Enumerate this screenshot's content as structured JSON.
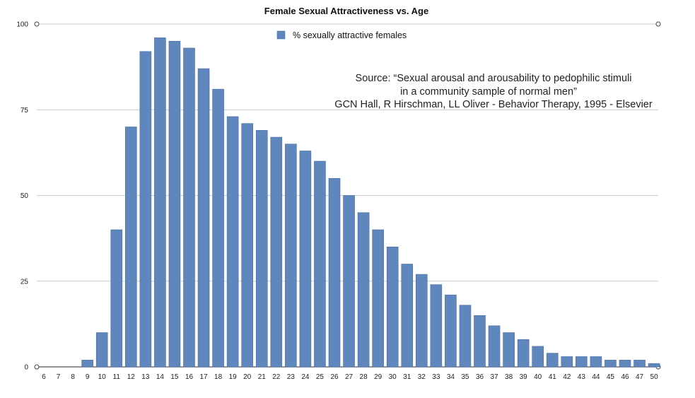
{
  "chart_data": {
    "type": "bar",
    "title": "Female Sexual Attractiveness vs. Age",
    "xlabel": "",
    "ylabel": "",
    "ylim": [
      0,
      100
    ],
    "yticks": [
      0,
      25,
      50,
      75,
      100
    ],
    "grid": true,
    "legend_position": "top-center",
    "colors": {
      "bar": "#5f86bd",
      "bar_edge": "#4c6fa3",
      "grid": "#bbbbbb"
    },
    "categories": [
      "6",
      "7",
      "8",
      "9",
      "10",
      "11",
      "12",
      "13",
      "14",
      "15",
      "16",
      "17",
      "18",
      "19",
      "20",
      "21",
      "22",
      "23",
      "24",
      "25",
      "26",
      "27",
      "28",
      "29",
      "30",
      "31",
      "32",
      "33",
      "34",
      "35",
      "36",
      "37",
      "38",
      "39",
      "40",
      "41",
      "42",
      "43",
      "44",
      "45",
      "46",
      "47",
      "50"
    ],
    "series": [
      {
        "name": "% sexually attractive females",
        "values": [
          0,
          0,
          0,
          2,
          10,
          40,
          70,
          92,
          96,
          95,
          93,
          87,
          81,
          73,
          71,
          69,
          67,
          65,
          63,
          60,
          55,
          50,
          45,
          40,
          35,
          30,
          27,
          24,
          21,
          18,
          15,
          12,
          10,
          8,
          6,
          4,
          3,
          3,
          3,
          2,
          2,
          2,
          1
        ]
      }
    ],
    "annotation": {
      "lines": [
        "Source: “Sexual arousal and arousability to pedophilic stimuli",
        "in a community sample of normal men”",
        "GCN Hall, R Hirschman, LL Oliver - Behavior Therapy, 1995 - Elsevier"
      ]
    }
  }
}
